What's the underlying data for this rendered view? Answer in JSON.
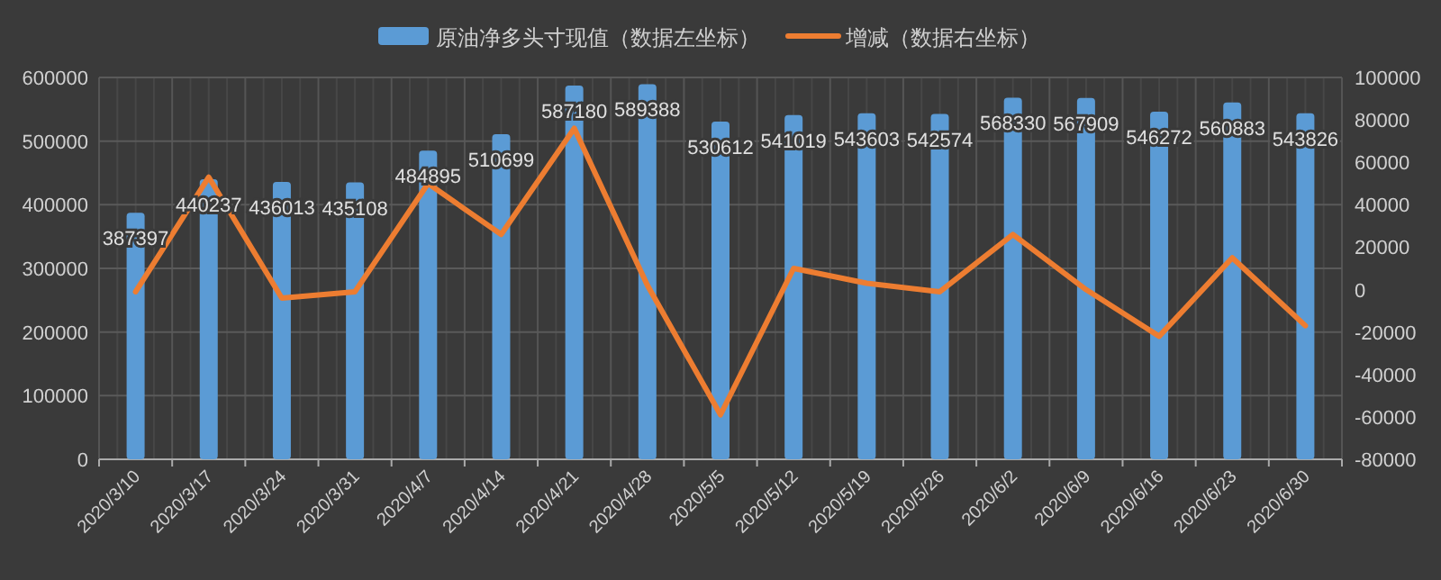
{
  "chart_data": {
    "type": "bar",
    "categories": [
      "2020/3/10",
      "2020/3/17",
      "2020/3/24",
      "2020/3/31",
      "2020/4/7",
      "2020/4/14",
      "2020/4/21",
      "2020/4/28",
      "2020/5/5",
      "2020/5/12",
      "2020/5/19",
      "2020/5/26",
      "2020/6/2",
      "2020/6/9",
      "2020/6/16",
      "2020/6/23",
      "2020/6/30"
    ],
    "series": [
      {
        "name": "原油净多头寸现值（数据左坐标）",
        "color": "#5b9bd5",
        "values": [
          387397,
          440237,
          436013,
          435108,
          484895,
          510699,
          587180,
          589388,
          530612,
          541019,
          543603,
          542574,
          568330,
          567909,
          546272,
          560883,
          543826
        ],
        "data_labels": true
      },
      {
        "name": "增减（数据右坐标）",
        "type": "line",
        "axis": "y2",
        "color": "#ed7d31",
        "marker": "none",
        "line_style": "solid",
        "values": [
          -1000,
          53000,
          -4000,
          -1000,
          50000,
          26000,
          76000,
          2000,
          -59000,
          10000,
          3000,
          -1000,
          26000,
          0,
          -22000,
          15000,
          -17000
        ]
      }
    ],
    "ylim": [
      0,
      600000
    ],
    "yticks": [
      0,
      100000,
      200000,
      300000,
      400000,
      500000,
      600000
    ],
    "y2lim": [
      -80000,
      100000
    ],
    "y2ticks": [
      -80000,
      -60000,
      -40000,
      -20000,
      0,
      20000,
      40000,
      60000,
      80000,
      100000
    ],
    "grid": true,
    "legend": "top"
  }
}
